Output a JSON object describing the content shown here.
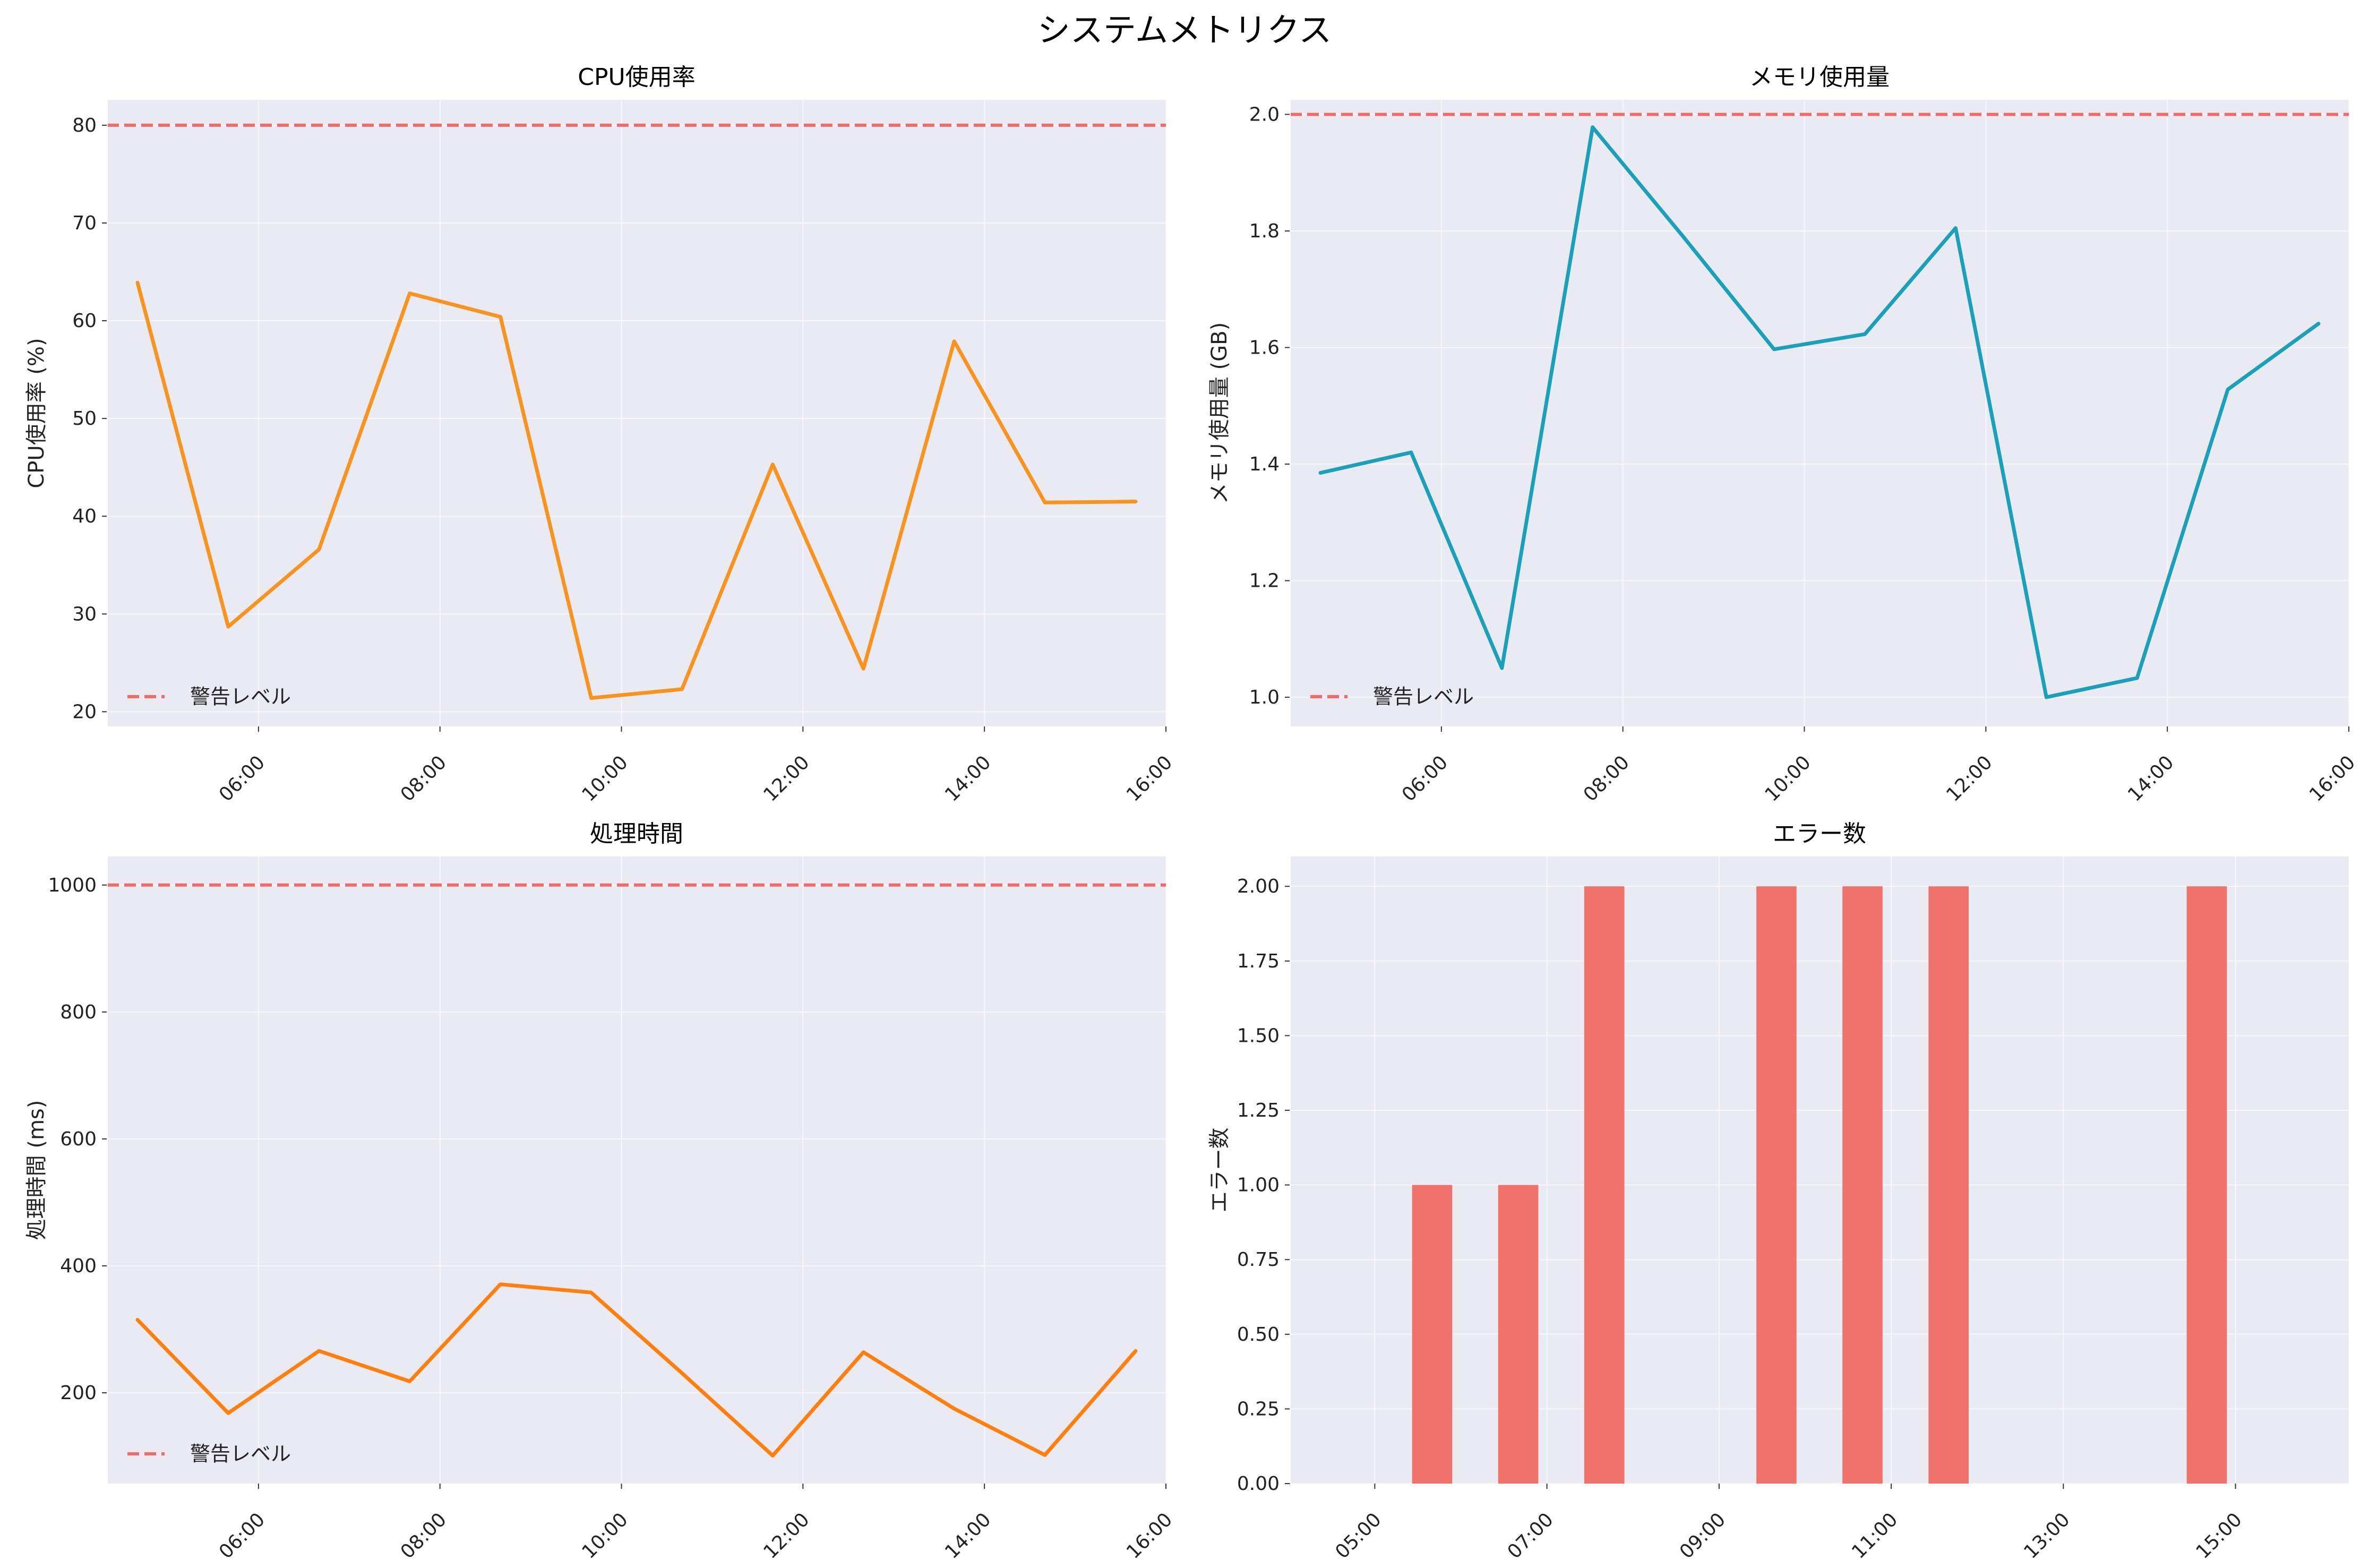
{
  "figure": {
    "title": "システムメトリクス"
  },
  "colors": {
    "background": "#ffffff",
    "plot_background": "#eaeaf2",
    "grid": "#f7f7fa",
    "warning": "#f26b6b",
    "cpu": "#f7931e",
    "memory": "#1aa0b8",
    "processing": "#ff7f0e",
    "errors": "#f0736b"
  },
  "chart_data": [
    {
      "type": "line",
      "title": "CPU使用率",
      "xlabel": "",
      "ylabel": "CPU使用率 (%)",
      "x": [
        "04:40",
        "05:40",
        "06:40",
        "07:40",
        "08:40",
        "09:40",
        "10:40",
        "11:40",
        "12:40",
        "13:40",
        "14:40",
        "15:40"
      ],
      "x_ticks": [
        "06:00",
        "08:00",
        "10:00",
        "12:00",
        "14:00",
        "16:00"
      ],
      "xlim": [
        "04:20",
        "16:00"
      ],
      "y_ticks": [
        20,
        30,
        40,
        50,
        60,
        70,
        80
      ],
      "ylim": [
        18.5,
        82.6
      ],
      "series": [
        {
          "values": [
            63.9,
            28.7,
            36.6,
            62.8,
            60.4,
            21.4,
            22.3,
            45.3,
            24.4,
            57.9,
            41.4,
            41.5
          ],
          "color": "#f7931e"
        }
      ],
      "warning": {
        "value": 80,
        "label": "警告レベル"
      },
      "legend": "lower-left",
      "grid": true
    },
    {
      "type": "line",
      "title": "メモリ使用量",
      "xlabel": "",
      "ylabel": "メモリ使用量 (GB)",
      "x": [
        "04:40",
        "05:40",
        "06:40",
        "07:40",
        "08:40",
        "09:40",
        "10:40",
        "11:40",
        "12:40",
        "13:40",
        "14:40",
        "15:40"
      ],
      "x_ticks": [
        "06:00",
        "08:00",
        "10:00",
        "12:00",
        "14:00",
        "16:00"
      ],
      "xlim": [
        "04:20",
        "16:00"
      ],
      "y_ticks": [
        1.0,
        1.2,
        1.4,
        1.6,
        1.8,
        2.0
      ],
      "ylim": [
        0.95,
        2.025
      ],
      "series": [
        {
          "values": [
            1.385,
            1.42,
            1.05,
            1.978,
            1.79,
            1.597,
            1.623,
            1.805,
            1.0,
            1.033,
            1.528,
            1.641
          ],
          "color": "#1aa0b8"
        }
      ],
      "warning": {
        "value": 2.0,
        "label": "警告レベル"
      },
      "legend": "lower-left",
      "grid": true
    },
    {
      "type": "line",
      "title": "処理時間",
      "xlabel": "",
      "ylabel": "処理時間 (ms)",
      "x": [
        "04:40",
        "05:40",
        "06:40",
        "07:40",
        "08:40",
        "09:40",
        "10:40",
        "11:40",
        "12:40",
        "13:40",
        "14:40",
        "15:40"
      ],
      "x_ticks": [
        "06:00",
        "08:00",
        "10:00",
        "12:00",
        "14:00",
        "16:00"
      ],
      "xlim": [
        "04:20",
        "16:00"
      ],
      "y_ticks": [
        200,
        400,
        600,
        800,
        1000
      ],
      "ylim": [
        57,
        1045
      ],
      "series": [
        {
          "values": [
            315,
            168,
            266,
            218,
            371,
            358,
            231,
            101,
            264,
            175,
            102,
            266
          ],
          "color": "#ff7f0e"
        }
      ],
      "warning": {
        "value": 1000,
        "label": "警告レベル"
      },
      "legend": "lower-left",
      "grid": true
    },
    {
      "type": "bar",
      "title": "エラー数",
      "xlabel": "",
      "ylabel": "エラー数",
      "x": [
        "04:40",
        "05:40",
        "06:40",
        "07:40",
        "08:40",
        "09:40",
        "10:40",
        "11:40",
        "12:40",
        "13:40",
        "14:40",
        "15:40"
      ],
      "x_ticks": [
        "05:00",
        "07:00",
        "09:00",
        "11:00",
        "13:00",
        "15:00"
      ],
      "xlim": [
        "04:01",
        "16:19"
      ],
      "y_ticks": [
        0.0,
        0.25,
        0.5,
        0.75,
        1.0,
        1.25,
        1.5,
        1.75,
        2.0
      ],
      "ylim": [
        0,
        2.1
      ],
      "series": [
        {
          "values": [
            0,
            1,
            1,
            2,
            0,
            2,
            2,
            2,
            0,
            0,
            2,
            0
          ],
          "color": "#f0736b"
        }
      ],
      "bar_width_minutes": 28,
      "grid": true
    }
  ]
}
